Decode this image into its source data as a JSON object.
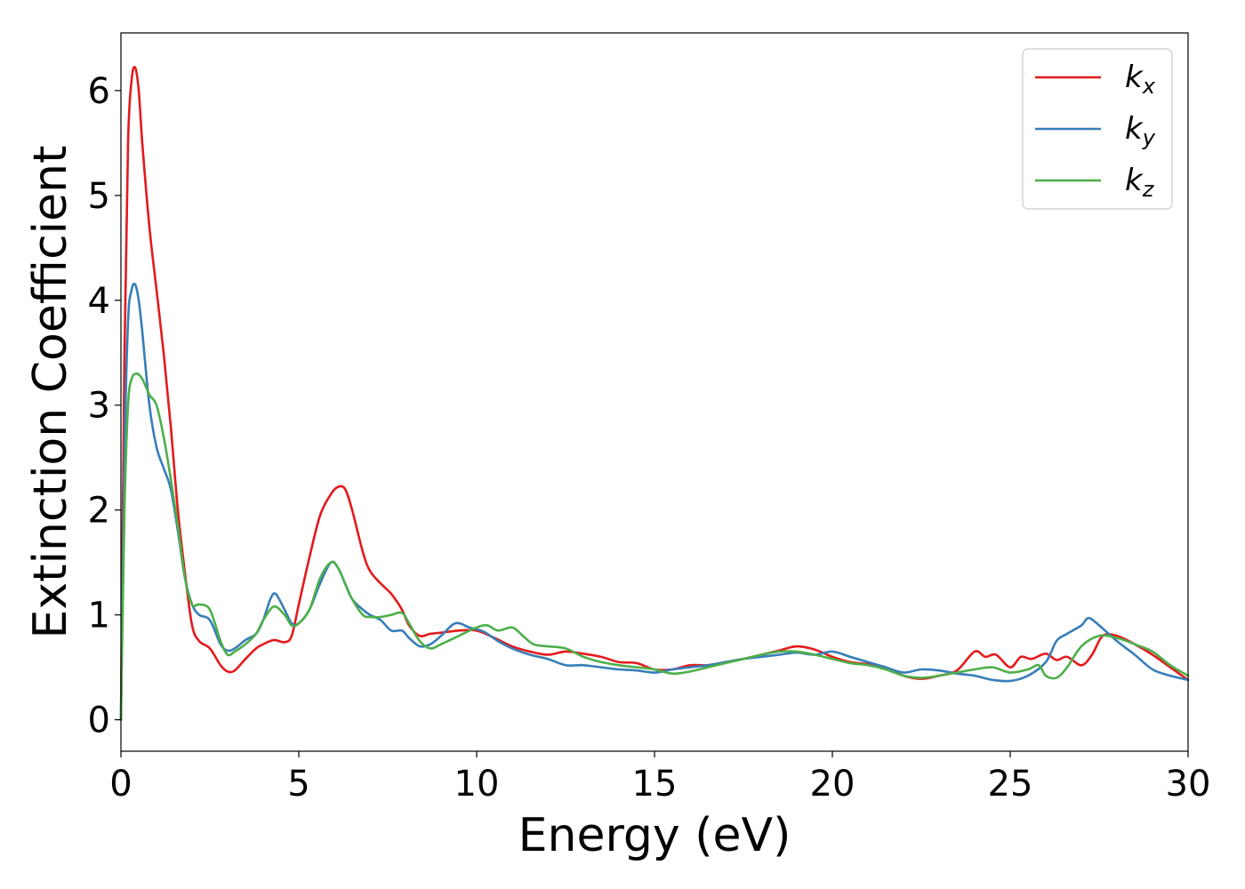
{
  "chart_data": {
    "type": "line",
    "xlabel": "Energy (eV)",
    "ylabel": "Extinction Coefficient",
    "xlim": [
      0,
      30
    ],
    "ylim": [
      -0.3,
      6.55
    ],
    "xticks": [
      0,
      5,
      10,
      15,
      20,
      25,
      30
    ],
    "xtick_labels": [
      "0",
      "5",
      "10",
      "15",
      "20",
      "25",
      "30"
    ],
    "yticks": [
      0,
      1,
      2,
      3,
      4,
      5,
      6
    ],
    "ytick_labels": [
      "0",
      "1",
      "2",
      "3",
      "4",
      "5",
      "6"
    ],
    "grid": false,
    "legend_position": "top-right",
    "series": [
      {
        "name": "k",
        "subscript": "x",
        "color": "#e41a1c",
        "x": [
          0,
          0.1,
          0.2,
          0.3,
          0.4,
          0.5,
          0.6,
          0.8,
          1.0,
          1.2,
          1.4,
          1.6,
          1.8,
          2.0,
          2.2,
          2.5,
          2.8,
          3.0,
          3.2,
          3.5,
          3.8,
          4.0,
          4.3,
          4.6,
          4.8,
          5.0,
          5.3,
          5.6,
          5.9,
          6.1,
          6.3,
          6.5,
          6.8,
          7.0,
          7.3,
          7.6,
          7.9,
          8.1,
          8.4,
          8.7,
          9.0,
          9.5,
          10.0,
          10.5,
          11.0,
          11.5,
          12.0,
          12.5,
          13.0,
          13.5,
          14.0,
          14.5,
          15.0,
          15.5,
          16.0,
          16.5,
          17.0,
          17.5,
          18.0,
          18.5,
          19.0,
          19.5,
          20.0,
          20.5,
          21.0,
          21.5,
          22.0,
          22.5,
          23.0,
          23.5,
          24.0,
          24.3,
          24.6,
          25.0,
          25.3,
          25.6,
          26.0,
          26.3,
          26.6,
          27.0,
          27.3,
          27.6,
          28.0,
          28.5,
          29.0,
          29.5,
          30.0
        ],
        "values": [
          0.0,
          3.5,
          5.5,
          6.1,
          6.22,
          6.0,
          5.5,
          4.7,
          4.1,
          3.5,
          2.8,
          2.0,
          1.4,
          0.9,
          0.75,
          0.68,
          0.52,
          0.46,
          0.47,
          0.58,
          0.68,
          0.72,
          0.76,
          0.74,
          0.8,
          1.1,
          1.55,
          1.95,
          2.15,
          2.22,
          2.2,
          2.0,
          1.6,
          1.42,
          1.3,
          1.2,
          1.05,
          0.9,
          0.8,
          0.82,
          0.83,
          0.85,
          0.85,
          0.78,
          0.7,
          0.65,
          0.62,
          0.65,
          0.63,
          0.6,
          0.55,
          0.54,
          0.48,
          0.48,
          0.52,
          0.52,
          0.55,
          0.58,
          0.62,
          0.66,
          0.7,
          0.67,
          0.6,
          0.55,
          0.53,
          0.5,
          0.42,
          0.39,
          0.42,
          0.47,
          0.65,
          0.6,
          0.62,
          0.5,
          0.6,
          0.58,
          0.63,
          0.57,
          0.6,
          0.52,
          0.62,
          0.8,
          0.8,
          0.72,
          0.62,
          0.5,
          0.38
        ]
      },
      {
        "name": "k",
        "subscript": "y",
        "color": "#377eb8",
        "x": [
          0,
          0.1,
          0.2,
          0.3,
          0.4,
          0.5,
          0.6,
          0.8,
          1.0,
          1.2,
          1.4,
          1.6,
          1.8,
          2.0,
          2.2,
          2.5,
          2.8,
          3.0,
          3.2,
          3.5,
          3.8,
          4.0,
          4.2,
          4.35,
          4.6,
          4.8,
          5.0,
          5.3,
          5.6,
          5.9,
          6.1,
          6.3,
          6.5,
          6.8,
          7.0,
          7.3,
          7.6,
          7.9,
          8.1,
          8.4,
          8.7,
          9.0,
          9.4,
          9.8,
          10.2,
          10.6,
          11.0,
          11.5,
          12.0,
          12.5,
          13.0,
          13.5,
          14.0,
          14.5,
          15.0,
          15.5,
          16.0,
          16.5,
          17.0,
          17.5,
          18.0,
          18.5,
          19.0,
          19.5,
          20.0,
          20.5,
          21.0,
          21.5,
          22.0,
          22.5,
          23.0,
          23.5,
          24.0,
          24.5,
          25.0,
          25.5,
          26.0,
          26.3,
          26.6,
          27.0,
          27.2,
          27.5,
          28.0,
          28.5,
          29.0,
          29.5,
          30.0
        ],
        "values": [
          0.0,
          2.5,
          3.8,
          4.1,
          4.15,
          4.0,
          3.7,
          3.0,
          2.6,
          2.4,
          2.2,
          1.8,
          1.35,
          1.1,
          1.0,
          0.95,
          0.72,
          0.66,
          0.68,
          0.76,
          0.82,
          0.95,
          1.15,
          1.2,
          1.05,
          0.92,
          0.92,
          1.05,
          1.3,
          1.5,
          1.45,
          1.3,
          1.15,
          1.05,
          1.0,
          0.95,
          0.85,
          0.85,
          0.78,
          0.7,
          0.72,
          0.8,
          0.92,
          0.88,
          0.84,
          0.75,
          0.68,
          0.62,
          0.58,
          0.52,
          0.52,
          0.5,
          0.48,
          0.47,
          0.45,
          0.48,
          0.5,
          0.52,
          0.55,
          0.58,
          0.6,
          0.62,
          0.64,
          0.62,
          0.65,
          0.6,
          0.55,
          0.5,
          0.45,
          0.48,
          0.47,
          0.44,
          0.42,
          0.38,
          0.37,
          0.42,
          0.55,
          0.75,
          0.82,
          0.9,
          0.97,
          0.9,
          0.75,
          0.62,
          0.48,
          0.42,
          0.38
        ]
      },
      {
        "name": "k",
        "subscript": "z",
        "color": "#4daf4a",
        "x": [
          0,
          0.1,
          0.2,
          0.3,
          0.45,
          0.6,
          0.8,
          1.0,
          1.2,
          1.4,
          1.6,
          1.8,
          2.0,
          2.2,
          2.5,
          2.8,
          3.0,
          3.2,
          3.5,
          3.8,
          4.0,
          4.3,
          4.6,
          4.8,
          5.0,
          5.3,
          5.6,
          5.9,
          6.1,
          6.3,
          6.5,
          6.8,
          7.0,
          7.3,
          7.6,
          7.9,
          8.1,
          8.4,
          8.7,
          9.0,
          9.5,
          10.0,
          10.3,
          10.6,
          11.0,
          11.3,
          11.6,
          12.0,
          12.5,
          13.0,
          13.5,
          14.0,
          14.5,
          15.0,
          15.5,
          16.0,
          16.5,
          17.0,
          17.5,
          18.0,
          18.5,
          19.0,
          19.5,
          20.0,
          20.5,
          21.0,
          21.5,
          22.0,
          22.5,
          23.0,
          23.5,
          24.0,
          24.5,
          25.0,
          25.5,
          25.8,
          26.0,
          26.3,
          26.6,
          27.0,
          27.5,
          28.0,
          28.5,
          29.0,
          29.5,
          30.0
        ],
        "values": [
          0.0,
          2.0,
          3.0,
          3.25,
          3.3,
          3.25,
          3.1,
          3.0,
          2.7,
          2.3,
          1.85,
          1.35,
          1.1,
          1.1,
          1.05,
          0.75,
          0.62,
          0.65,
          0.72,
          0.82,
          0.95,
          1.08,
          1.0,
          0.9,
          0.92,
          1.05,
          1.35,
          1.5,
          1.45,
          1.3,
          1.15,
          1.0,
          0.98,
          0.98,
          1.0,
          1.02,
          0.92,
          0.75,
          0.68,
          0.72,
          0.8,
          0.88,
          0.9,
          0.85,
          0.88,
          0.8,
          0.72,
          0.7,
          0.68,
          0.6,
          0.55,
          0.52,
          0.5,
          0.48,
          0.44,
          0.46,
          0.5,
          0.54,
          0.58,
          0.62,
          0.65,
          0.65,
          0.62,
          0.58,
          0.54,
          0.52,
          0.48,
          0.42,
          0.4,
          0.42,
          0.45,
          0.48,
          0.5,
          0.45,
          0.48,
          0.52,
          0.42,
          0.4,
          0.5,
          0.7,
          0.8,
          0.78,
          0.72,
          0.65,
          0.52,
          0.42
        ]
      }
    ]
  }
}
